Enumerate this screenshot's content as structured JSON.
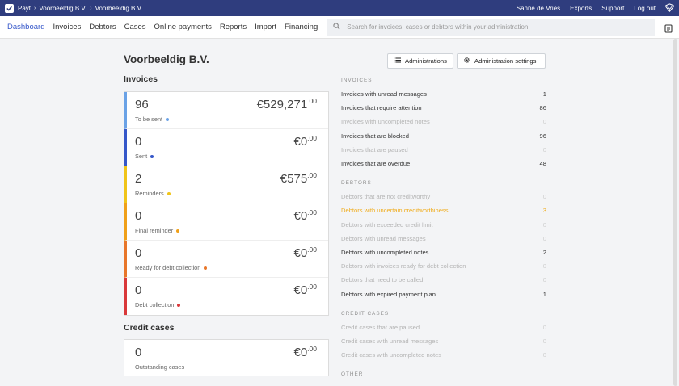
{
  "topbar": {
    "breadcrumbs": [
      "Payt",
      "Voorbeeldig B.V.",
      "Voorbeeldig B.V."
    ],
    "user": "Sanne de Vries",
    "exports": "Exports",
    "support": "Support",
    "logout": "Log out"
  },
  "nav": {
    "items": [
      "Dashboard",
      "Invoices",
      "Debtors",
      "Cases",
      "Online payments",
      "Reports",
      "Import",
      "Financing"
    ],
    "search_placeholder": "Search for invoices, cases or debtors within your administration"
  },
  "page": {
    "title": "Voorbeeldig B.V.",
    "administrations_label": "Administrations",
    "settings_label": "Administration settings"
  },
  "invoices": {
    "title": "Invoices",
    "rows": [
      {
        "count": "96",
        "label": "To be sent",
        "amount": "€529,271",
        "cents": ".00",
        "color": "#6aa2e6"
      },
      {
        "count": "0",
        "label": "Sent",
        "amount": "€0",
        "cents": ".00",
        "color": "#3557c9"
      },
      {
        "count": "2",
        "label": "Reminders",
        "amount": "€575",
        "cents": ".00",
        "color": "#f0c419"
      },
      {
        "count": "0",
        "label": "Final reminder",
        "amount": "€0",
        "cents": ".00",
        "color": "#f0a019"
      },
      {
        "count": "0",
        "label": "Ready for debt collection",
        "amount": "€0",
        "cents": ".00",
        "color": "#e8762a"
      },
      {
        "count": "0",
        "label": "Debt collection",
        "amount": "€0",
        "cents": ".00",
        "color": "#d9383a"
      }
    ]
  },
  "credit": {
    "title": "Credit cases",
    "count": "0",
    "label": "Outstanding cases",
    "amount": "€0",
    "cents": ".00"
  },
  "stats": {
    "invoices_heading": "INVOICES",
    "invoices": [
      {
        "label": "Invoices with unread messages",
        "value": "1",
        "style": "dark"
      },
      {
        "label": "Invoices that require attention",
        "value": "86",
        "style": "dark"
      },
      {
        "label": "Invoices with uncompleted notes",
        "value": "0",
        "style": "muted"
      },
      {
        "label": "Invoices that are blocked",
        "value": "96",
        "style": "dark"
      },
      {
        "label": "Invoices that are paused",
        "value": "0",
        "style": "muted"
      },
      {
        "label": "Invoices that are overdue",
        "value": "48",
        "style": "dark"
      }
    ],
    "debtors_heading": "DEBTORS",
    "debtors": [
      {
        "label": "Debtors that are not creditworthy",
        "value": "0",
        "style": "muted"
      },
      {
        "label": "Debtors with uncertain creditworthiness",
        "value": "3",
        "style": "warn"
      },
      {
        "label": "Debtors with exceeded credit limit",
        "value": "0",
        "style": "muted"
      },
      {
        "label": "Debtors with unread messages",
        "value": "0",
        "style": "muted"
      },
      {
        "label": "Debtors with uncompleted notes",
        "value": "2",
        "style": "dark"
      },
      {
        "label": "Debtors with invoices ready for debt collection",
        "value": "0",
        "style": "muted"
      },
      {
        "label": "Debtors that need to be called",
        "value": "0",
        "style": "muted"
      },
      {
        "label": "Debtors with expired payment plan",
        "value": "1",
        "style": "dark"
      }
    ],
    "credit_heading": "CREDIT CASES",
    "credit": [
      {
        "label": "Credit cases that are paused",
        "value": "0",
        "style": "muted"
      },
      {
        "label": "Credit cases with unread messages",
        "value": "0",
        "style": "muted"
      },
      {
        "label": "Credit cases with uncompleted notes",
        "value": "0",
        "style": "muted"
      }
    ],
    "other_heading": "OTHER"
  }
}
